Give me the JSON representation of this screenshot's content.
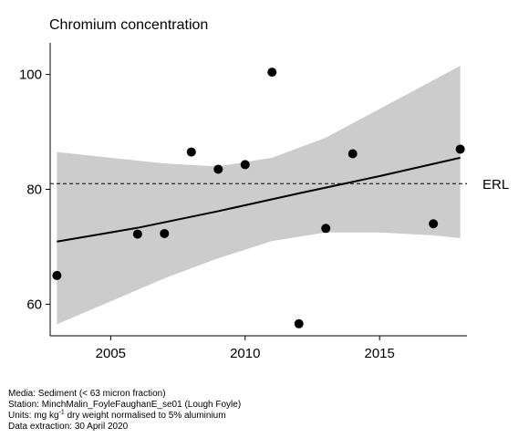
{
  "chart_data": {
    "type": "scatter",
    "title": "Chromium concentration",
    "xlabel": "",
    "ylabel": "",
    "xlim": [
      2002.75,
      2018.25
    ],
    "ylim": [
      54.5,
      105.5
    ],
    "x_ticks": [
      2005,
      2010,
      2015
    ],
    "y_ticks": [
      60,
      80,
      100
    ],
    "points": [
      {
        "x": 2003,
        "y": 65.0
      },
      {
        "x": 2006,
        "y": 72.2
      },
      {
        "x": 2007,
        "y": 72.3
      },
      {
        "x": 2008,
        "y": 86.5
      },
      {
        "x": 2009,
        "y": 83.5
      },
      {
        "x": 2010,
        "y": 84.3
      },
      {
        "x": 2011,
        "y": 100.4
      },
      {
        "x": 2012,
        "y": 56.6
      },
      {
        "x": 2013,
        "y": 73.2
      },
      {
        "x": 2014,
        "y": 86.2
      },
      {
        "x": 2017,
        "y": 74.0
      },
      {
        "x": 2018,
        "y": 87.0
      }
    ],
    "trend": {
      "x": [
        2003,
        2006,
        2009,
        2012,
        2015,
        2018
      ],
      "y": [
        70.9,
        73.3,
        76.2,
        79.3,
        82.3,
        85.5
      ]
    },
    "confidence_band": {
      "x": [
        2003,
        2005,
        2007,
        2009,
        2011,
        2013,
        2015,
        2017,
        2018
      ],
      "upper": [
        86.5,
        85.5,
        84.5,
        84.0,
        85.5,
        89.0,
        94.0,
        99.0,
        101.5
      ],
      "lower": [
        56.5,
        60.5,
        64.5,
        68.0,
        71.0,
        72.5,
        72.5,
        72.0,
        71.5
      ]
    },
    "reference_line": {
      "label": "ERL",
      "value": 81.0
    },
    "colors": {
      "band": "#cccccc",
      "points": "#000000",
      "trend": "#000000"
    }
  },
  "footer": {
    "media": "Media: Sediment (< 63 micron fraction)",
    "station": "Station: MinchMalin_FoyleFaughanE_se01 (Lough Foyle)",
    "units_prefix": "Units:  mg kg",
    "units_exp": "-1",
    "units_suffix": " dry weight normalised to 5% aluminium",
    "extraction": "Data extraction: 30 April 2020"
  }
}
